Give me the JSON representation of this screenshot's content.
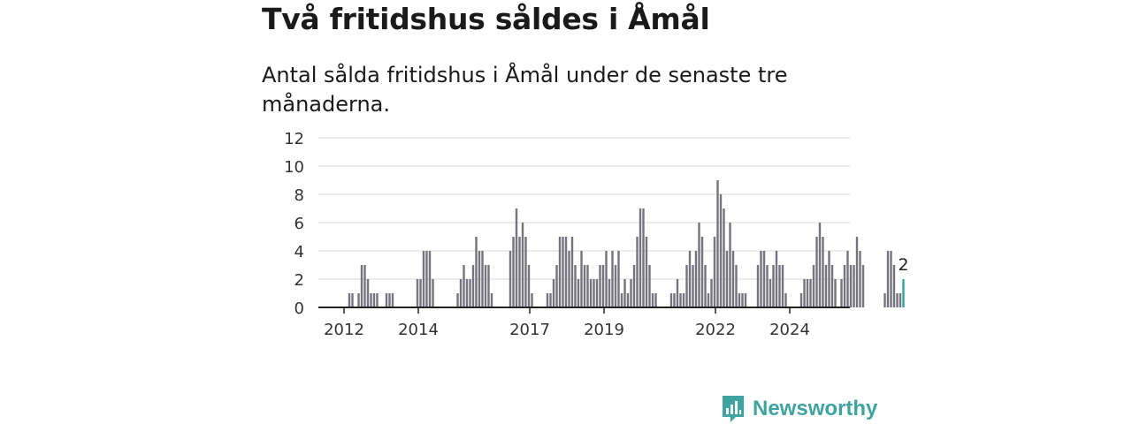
{
  "header": {
    "title": "Två fritidshus såldes i Åmål",
    "subtitle": "Antal sålda fritidshus i Åmål under de senaste tre månaderna."
  },
  "brand": {
    "name": "Newsworthy",
    "icon": "newsworthy-logo-icon",
    "color": "#3fa3a0"
  },
  "colors": {
    "bar": "#75737e",
    "highlight": "#2ea59d",
    "grid": "#d9d9d9",
    "axis": "#222222"
  },
  "chart_data": {
    "type": "bar",
    "title": "Två fritidshus såldes i Åmål",
    "subtitle": "Antal sålda fritidshus i Åmål under de senaste tre månaderna.",
    "xlabel": "",
    "ylabel": "",
    "ylim": [
      0,
      12
    ],
    "yticks": [
      0,
      2,
      4,
      6,
      8,
      10,
      12
    ],
    "xticks": [
      "2012",
      "2014",
      "2017",
      "2019",
      "2022",
      "2024"
    ],
    "grid": true,
    "legend": "none",
    "frequency": "monthly, rolling three-month totals",
    "series": [
      {
        "values": [
          0,
          0,
          0,
          0,
          0,
          0,
          0,
          0,
          1,
          1,
          0,
          1,
          3,
          3,
          2,
          1,
          1,
          1,
          0,
          0,
          1,
          1,
          1,
          0,
          0,
          0,
          0,
          0,
          0,
          0,
          2,
          2,
          4,
          4,
          4,
          2,
          0,
          0,
          0,
          0,
          0,
          0,
          0,
          1,
          2,
          3,
          2,
          2,
          3,
          5,
          4,
          4,
          3,
          3,
          1,
          0,
          0,
          0,
          0,
          0,
          4,
          5,
          7,
          5,
          6,
          5,
          3,
          1,
          0,
          0,
          0,
          0,
          1,
          1,
          2,
          3,
          5,
          5,
          5,
          4,
          5,
          3,
          2,
          4,
          3,
          3,
          2,
          2,
          2,
          3,
          3,
          4,
          2,
          4,
          3,
          4,
          1,
          2,
          1,
          2,
          3,
          5,
          7,
          7,
          5,
          3,
          1,
          1,
          0,
          0,
          0,
          0,
          1,
          1,
          2,
          1,
          1,
          3,
          4,
          3,
          4,
          6,
          5,
          3,
          1,
          2,
          5,
          9,
          8,
          7,
          4,
          6,
          4,
          3,
          1,
          1,
          1,
          0,
          0,
          0,
          3,
          4,
          4,
          3,
          2,
          3,
          4,
          3,
          3,
          1,
          0,
          0,
          0,
          0,
          1,
          2,
          2,
          2,
          3,
          5,
          6,
          5,
          3,
          4,
          3,
          2,
          0,
          2,
          3,
          4,
          3,
          3,
          5,
          4,
          3,
          0,
          0,
          0,
          0,
          0,
          0,
          1,
          4,
          4,
          3,
          1,
          1,
          2
        ],
        "highlight_last": true,
        "last_value_label": "2"
      }
    ]
  }
}
